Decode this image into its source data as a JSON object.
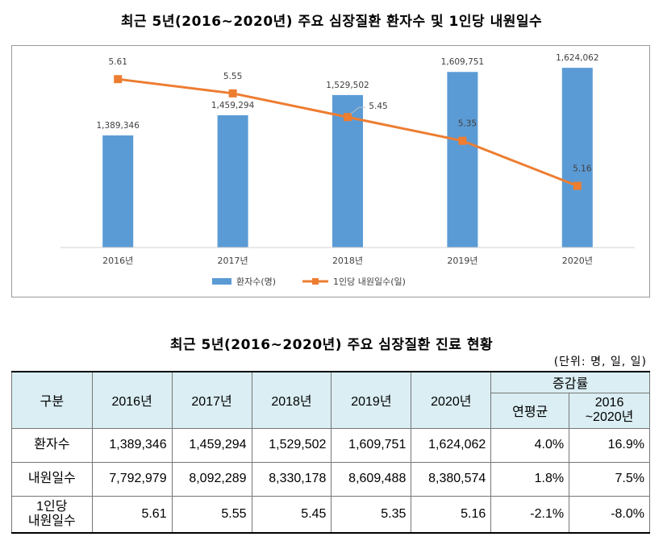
{
  "chart_title": "최근 5년(2016~2020년) 주요 심장질환 환자수 및 1인당 내원일수",
  "chart_data": {
    "type": "bar",
    "categories": [
      "2016년",
      "2017년",
      "2018년",
      "2019년",
      "2020년"
    ],
    "series": [
      {
        "name": "환자수(명)",
        "kind": "bar",
        "color": "#5b9bd5",
        "values": [
          1389346,
          1459294,
          1529502,
          1609751,
          1624062
        ],
        "labels": [
          "1,389,346",
          "1,459,294",
          "1,529,502",
          "1,609,751",
          "1,624,062"
        ]
      },
      {
        "name": "1인당 내원일수(일)",
        "kind": "line",
        "color": "#ed7d31",
        "values": [
          5.61,
          5.55,
          5.45,
          5.35,
          5.16
        ],
        "labels": [
          "5.61",
          "5.55",
          "5.45",
          "5.35",
          "5.16"
        ]
      }
    ],
    "bar_axis_range": [
      1000000,
      1700000
    ],
    "line_axis_range": [
      4.9,
      5.75
    ],
    "legend_position": "bottom",
    "grid": false
  },
  "table": {
    "title": "최근 5년(2016~2020년) 주요 심장질환 진료 현황",
    "unit_note": "(단위: 명, 일, 일)",
    "header": {
      "category": "구분",
      "years": [
        "2016년",
        "2017년",
        "2018년",
        "2019년",
        "2020년"
      ],
      "change_group": "증감률",
      "change_cols": [
        "연평균",
        "2016",
        "~2020년"
      ]
    },
    "rows": [
      {
        "label": [
          "환자수"
        ],
        "values": [
          "1,389,346",
          "1,459,294",
          "1,529,502",
          "1,609,751",
          "1,624,062"
        ],
        "avg": "4.0%",
        "total": "16.9%"
      },
      {
        "label": [
          "내원일수"
        ],
        "values": [
          "7,792,979",
          "8,092,289",
          "8,330,178",
          "8,609,488",
          "8,380,574"
        ],
        "avg": "1.8%",
        "total": "7.5%"
      },
      {
        "label": [
          "1인당",
          "내원일수"
        ],
        "values": [
          "5.61",
          "5.55",
          "5.45",
          "5.35",
          "5.16"
        ],
        "avg": "-2.1%",
        "total": "-8.0%"
      }
    ]
  }
}
